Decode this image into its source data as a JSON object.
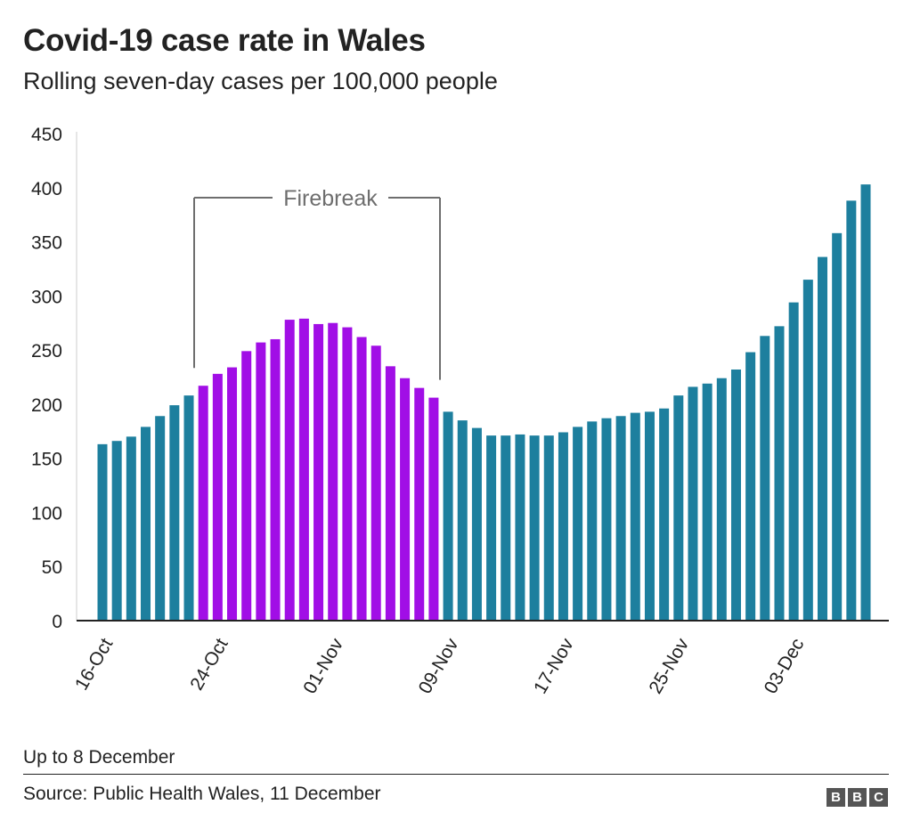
{
  "header": {
    "title": "Covid-19 case rate in Wales",
    "subtitle": "Rolling seven-day cases per 100,000 people"
  },
  "footer": {
    "note": "Up to 8 December",
    "source": "Source: Public Health Wales, 11 December",
    "logo": [
      "B",
      "B",
      "C"
    ]
  },
  "colors": {
    "bar": "#1d7f9e",
    "highlight": "#a10ee6",
    "annotation": "#6e6e6e",
    "axis": "#222222",
    "grid": "#cccccc"
  },
  "chart_data": {
    "type": "bar",
    "title": "Covid-19 case rate in Wales",
    "subtitle": "Rolling seven-day cases per 100,000 people",
    "xlabel": "",
    "ylabel": "",
    "ylim": [
      0,
      450
    ],
    "yticks": [
      0,
      50,
      100,
      150,
      200,
      250,
      300,
      350,
      400,
      450
    ],
    "grid": false,
    "legend": "none",
    "x_tick_labels": [
      {
        "index": 0,
        "label": "16-Oct"
      },
      {
        "index": 8,
        "label": "24-Oct"
      },
      {
        "index": 16,
        "label": "01-Nov"
      },
      {
        "index": 24,
        "label": "09-Nov"
      },
      {
        "index": 32,
        "label": "17-Nov"
      },
      {
        "index": 40,
        "label": "25-Nov"
      },
      {
        "index": 48,
        "label": "03-Dec"
      }
    ],
    "start_date": "16-Oct",
    "values": [
      163,
      166,
      170,
      179,
      189,
      199,
      208,
      217,
      228,
      234,
      249,
      257,
      260,
      278,
      279,
      274,
      275,
      271,
      262,
      254,
      235,
      224,
      215,
      206,
      193,
      185,
      178,
      171,
      171,
      172,
      171,
      171,
      174,
      179,
      184,
      187,
      189,
      192,
      193,
      196,
      208,
      216,
      219,
      224,
      232,
      248,
      263,
      272,
      294,
      315,
      336,
      358,
      388,
      403
    ],
    "highlight": {
      "start_index": 7,
      "end_index": 23,
      "label": "Firebreak"
    }
  }
}
